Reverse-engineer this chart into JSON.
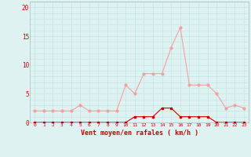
{
  "x": [
    0,
    1,
    2,
    3,
    4,
    5,
    6,
    7,
    8,
    9,
    10,
    11,
    12,
    13,
    14,
    15,
    16,
    17,
    18,
    19,
    20,
    21,
    22,
    23
  ],
  "rafales": [
    2.0,
    2.0,
    2.0,
    2.0,
    2.0,
    3.0,
    2.0,
    2.0,
    2.0,
    2.0,
    6.5,
    5.0,
    8.5,
    8.5,
    8.5,
    13.0,
    16.5,
    6.5,
    6.5,
    6.5,
    5.0,
    2.5,
    3.0,
    2.5
  ],
  "moyen": [
    0.0,
    0.0,
    0.0,
    0.0,
    0.0,
    0.0,
    0.0,
    0.0,
    0.0,
    0.0,
    0.0,
    1.0,
    1.0,
    1.0,
    2.5,
    2.5,
    1.0,
    1.0,
    1.0,
    1.0,
    0.0,
    0.0,
    0.0,
    0.0
  ],
  "rafales_color": "#F4A0A0",
  "moyen_color": "#CC0000",
  "bg_color": "#DFF2F2",
  "grid_color": "#C8E8E8",
  "yticks": [
    0,
    5,
    10,
    15,
    20
  ],
  "xlabel": "Vent moyen/en rafales ( km/h )",
  "ylim": [
    0,
    21
  ],
  "xlim": [
    -0.5,
    23.5
  ],
  "tick_color": "#CC0000",
  "xlabel_color": "#CC0000",
  "ylabel_color": "#CC0000",
  "spine_color": "#AABBBB"
}
